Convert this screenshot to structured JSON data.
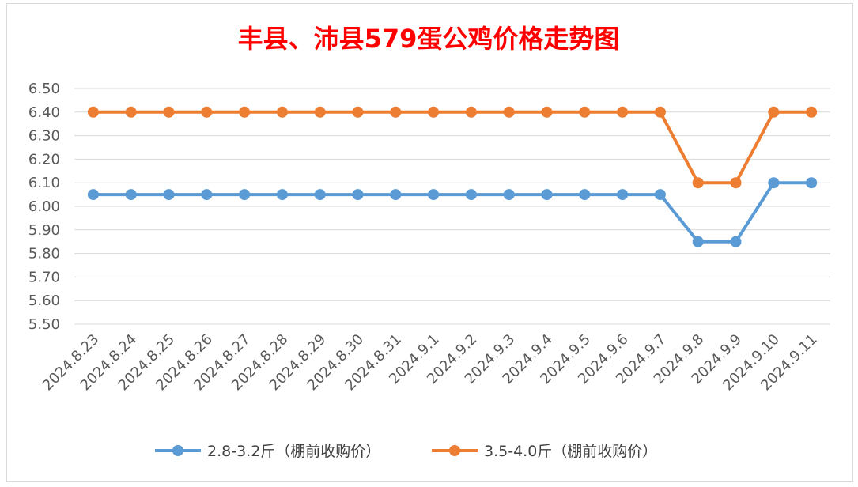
{
  "chart_data": {
    "type": "line",
    "title": "丰县、沛县579蛋公鸡价格走势图",
    "categories": [
      "2024.8.23",
      "2024.8.24",
      "2024.8.25",
      "2024.8.26",
      "2024.8.27",
      "2024.8.28",
      "2024.8.29",
      "2024.8.30",
      "2024.8.31",
      "2024.9.1",
      "2024.9.2",
      "2024.9.3",
      "2024.9.4",
      "2024.9.5",
      "2024.9.6",
      "2024.9.7",
      "2024.9.8",
      "2024.9.9",
      "2024.9.10",
      "2024.9.11"
    ],
    "series": [
      {
        "name": "2.8-3.2斤（棚前收购价）",
        "color": "#5b9bd5",
        "values": [
          6.05,
          6.05,
          6.05,
          6.05,
          6.05,
          6.05,
          6.05,
          6.05,
          6.05,
          6.05,
          6.05,
          6.05,
          6.05,
          6.05,
          6.05,
          6.05,
          5.85,
          5.85,
          6.1,
          6.1
        ]
      },
      {
        "name": "3.5-4.0斤（棚前收购价）",
        "color": "#ed7d31",
        "values": [
          6.4,
          6.4,
          6.4,
          6.4,
          6.4,
          6.4,
          6.4,
          6.4,
          6.4,
          6.4,
          6.4,
          6.4,
          6.4,
          6.4,
          6.4,
          6.4,
          6.1,
          6.1,
          6.4,
          6.4
        ]
      }
    ],
    "yticks": [
      "5.50",
      "5.60",
      "5.70",
      "5.80",
      "5.90",
      "6.00",
      "6.10",
      "6.20",
      "6.30",
      "6.40",
      "6.50"
    ],
    "ylim": [
      5.5,
      6.5
    ],
    "grid": true,
    "legend": "bottom"
  }
}
